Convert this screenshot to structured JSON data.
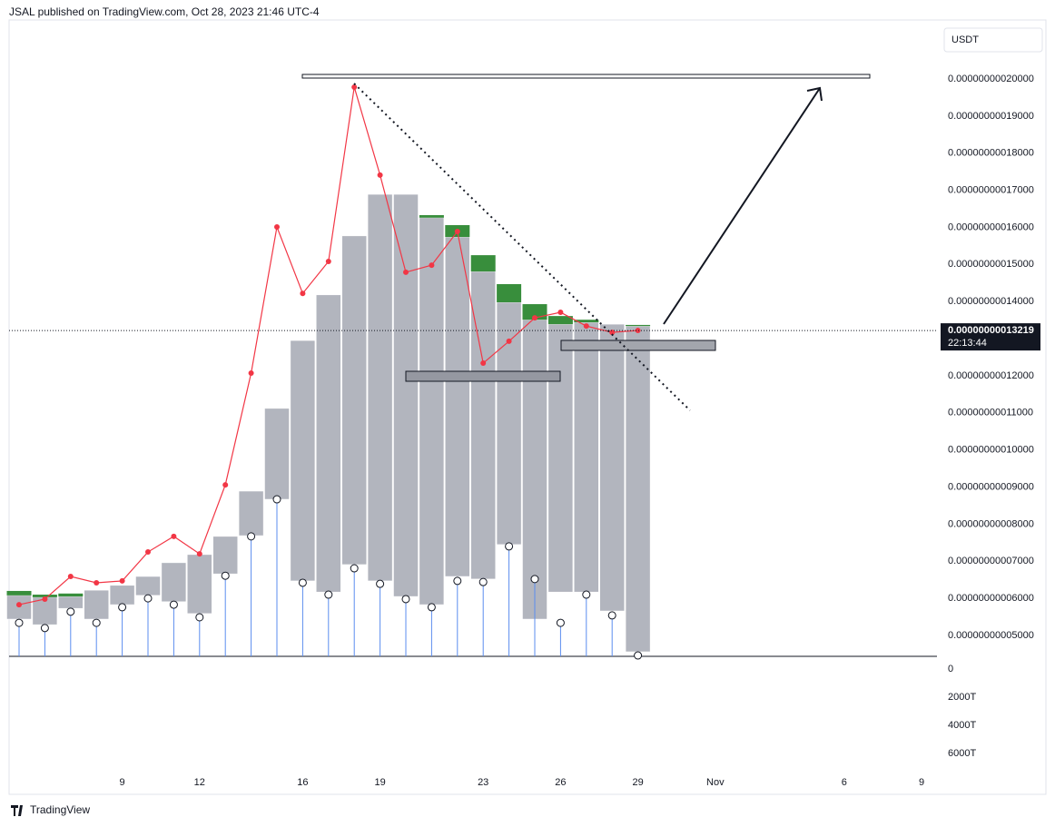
{
  "header": "JSAL published on TradingView.com, Oct 28, 2023 21:46 UTC-4",
  "footer": "TradingView",
  "chart_data": {
    "type": "candlestick",
    "currency": "USDT",
    "last_price": {
      "value": 1.3219e-10,
      "label": "0.00000000013219",
      "countdown": "22:13:44"
    },
    "categories": [
      null,
      null,
      null,
      null,
      "9",
      null,
      null,
      "12",
      null,
      null,
      null,
      "16",
      null,
      null,
      "19",
      null,
      null,
      null,
      "23",
      null,
      null,
      "26",
      null,
      null,
      "29",
      null,
      null,
      "Nov",
      null,
      null,
      null,
      null,
      "6",
      null,
      null,
      "9"
    ],
    "box_color": "#b2b5be",
    "green_color": "#388e3c",
    "box_top": [
      6.08e-11,
      6.03e-11,
      6.05e-11,
      6.22e-11,
      6.35e-11,
      6.59e-11,
      6.96e-11,
      7.18e-11,
      7.67e-11,
      8.89e-11,
      1.112e-10,
      1.295e-10,
      1.418e-10,
      1.577e-10,
      1.689e-10,
      1.689e-10,
      1.626e-10,
      1.574e-10,
      1.481e-10,
      1.398e-10,
      1.351e-10,
      1.339e-10,
      1.344e-10,
      1.339e-10,
      1.334e-10,
      null,
      null,
      null,
      null,
      null,
      null,
      null,
      null,
      null,
      null,
      null
    ],
    "box_bottom": [
      5.44e-11,
      5.29e-11,
      5.73e-11,
      5.44e-11,
      5.83e-11,
      6.08e-11,
      5.91e-11,
      5.59e-11,
      6.66e-11,
      7.69e-11,
      8.67e-11,
      6.47e-11,
      6.17e-11,
      6.91e-11,
      6.47e-11,
      6.05e-11,
      5.83e-11,
      6.59e-11,
      6.52e-11,
      7.45e-11,
      5.44e-11,
      6.17e-11,
      6.17e-11,
      5.66e-11,
      4.56e-11,
      null,
      null,
      null,
      null,
      null,
      null,
      null,
      null,
      null,
      null,
      null
    ],
    "green_top": [
      6.2e-11,
      6.1e-11,
      6.13e-11,
      null,
      null,
      null,
      null,
      null,
      null,
      null,
      null,
      null,
      null,
      null,
      null,
      null,
      1.633e-10,
      1.606e-10,
      1.525e-10,
      1.447e-10,
      1.393e-10,
      1.361e-10,
      1.351e-10,
      null,
      1.337e-10,
      null,
      null,
      null,
      null,
      null,
      null,
      null,
      null,
      null,
      null,
      null
    ],
    "line": {
      "color": "#f23645",
      "values": [
        5.83e-11,
        5.98e-11,
        6.59e-11,
        6.42e-11,
        6.47e-11,
        7.25e-11,
        7.67e-11,
        7.2e-11,
        9.06e-11,
        1.207e-10,
        1.601e-10,
        1.422e-10,
        1.508e-10,
        1.978e-10,
        1.741e-10,
        1.479e-10,
        1.498e-10,
        1.589e-10,
        1.234e-10,
        1.293e-10,
        1.356e-10,
        1.371e-10,
        1.334e-10,
        1.317e-10,
        1.322e-10,
        null,
        null,
        null,
        null,
        null,
        null,
        null,
        null,
        null,
        null,
        null
      ]
    },
    "markers": {
      "color": "#5b8def",
      "values": [
        5.34e-11,
        5.2e-11,
        5.64e-11,
        5.34e-11,
        5.76e-11,
        6e-11,
        5.83e-11,
        5.49e-11,
        6.61e-11,
        7.67e-11,
        8.67e-11,
        6.42e-11,
        6.1e-11,
        6.81e-11,
        6.39e-11,
        5.98e-11,
        5.76e-11,
        6.47e-11,
        6.44e-11,
        7.4e-11,
        6.52e-11,
        5.34e-11,
        6.1e-11,
        5.54e-11,
        4.46e-11,
        null,
        null,
        null,
        null,
        null,
        null,
        null,
        null,
        null,
        null,
        null
      ]
    },
    "ylim": [
      4.437e-11,
      2.159e-10
    ],
    "yticks": [
      {
        "value": 5e-11,
        "label": "0.00000000005000"
      },
      {
        "value": 6e-11,
        "label": "0.00000000006000"
      },
      {
        "value": 7e-11,
        "label": "0.00000000007000"
      },
      {
        "value": 8e-11,
        "label": "0.00000000008000"
      },
      {
        "value": 9e-11,
        "label": "0.00000000009000"
      },
      {
        "value": 1e-10,
        "label": "0.00000000010000"
      },
      {
        "value": 1.1e-10,
        "label": "0.00000000011000"
      },
      {
        "value": 1.2e-10,
        "label": "0.00000000012000"
      },
      {
        "value": 1.3e-10,
        "label": "0.00000000013000"
      },
      {
        "value": 1.4e-10,
        "label": "0.00000000014000"
      },
      {
        "value": 1.5e-10,
        "label": "0.00000000015000"
      },
      {
        "value": 1.6e-10,
        "label": "0.00000000016000"
      },
      {
        "value": 1.7e-10,
        "label": "0.00000000017000"
      },
      {
        "value": 1.8e-10,
        "label": "0.00000000018000"
      },
      {
        "value": 1.9e-10,
        "label": "0.00000000019000"
      },
      {
        "value": 2e-10,
        "label": "0.00000000020000"
      }
    ],
    "volume_ylim": [
      0,
      7300000000000000.0
    ],
    "volume_yticks": [
      0,
      {
        "value": 2000000000000000.0,
        "label": "2000T"
      },
      {
        "value": 4000000000000000.0,
        "label": "4000T"
      },
      {
        "value": 6000000000000000.0,
        "label": "6000T"
      }
    ]
  }
}
